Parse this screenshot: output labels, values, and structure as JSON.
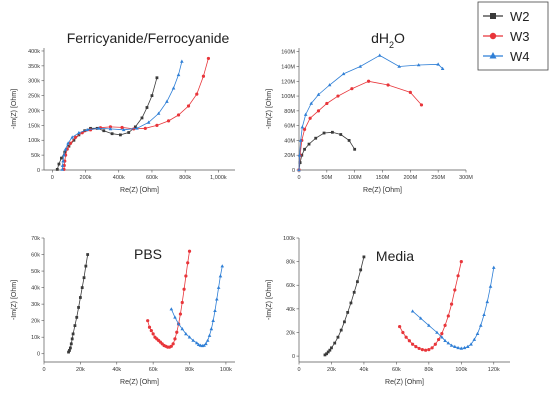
{
  "legend": {
    "position": "top-right",
    "entries": [
      {
        "name": "W2",
        "color": "#3a3a3a",
        "marker": "square"
      },
      {
        "name": "W3",
        "color": "#e8353a",
        "marker": "circle"
      },
      {
        "name": "W4",
        "color": "#2f7fd6",
        "marker": "triangle"
      }
    ]
  },
  "chart_data": [
    {
      "type": "scatter",
      "title": "Ferricyanide/Ferrocyanide",
      "title_sub": "",
      "xlabel": "Re(Z) [Ohm]",
      "ylabel": "-Im(Z) [Ohm]",
      "xlim": [
        -50000,
        1100000
      ],
      "ylim": [
        0,
        410000
      ],
      "xticks": [
        0,
        200000,
        400000,
        600000,
        800000,
        1000000
      ],
      "xtick_labels": [
        "0",
        "200k",
        "400k",
        "600k",
        "800k",
        "1,000k"
      ],
      "yticks": [
        0,
        50000,
        100000,
        150000,
        200000,
        250000,
        300000,
        350000,
        400000
      ],
      "ytick_labels": [
        "0",
        "50k",
        "100k",
        "150k",
        "200k",
        "250k",
        "300k",
        "350k",
        "400k"
      ],
      "series": [
        {
          "name": "W2",
          "x": [
            30000,
            40000,
            55000,
            75000,
            100000,
            130000,
            160000,
            195000,
            230000,
            270000,
            310000,
            360000,
            410000,
            460000,
            500000,
            540000,
            570000,
            600000,
            630000
          ],
          "y": [
            2000,
            20000,
            40000,
            60000,
            80000,
            100000,
            118000,
            132000,
            140000,
            140000,
            132000,
            122000,
            118000,
            126000,
            145000,
            175000,
            210000,
            250000,
            310000
          ]
        },
        {
          "name": "W3",
          "x": [
            70000,
            72000,
            75000,
            80000,
            90000,
            110000,
            140000,
            180000,
            230000,
            290000,
            350000,
            420000,
            490000,
            560000,
            630000,
            700000,
            760000,
            820000,
            870000,
            910000,
            940000
          ],
          "y": [
            2000,
            15000,
            30000,
            50000,
            70000,
            90000,
            110000,
            125000,
            135000,
            142000,
            145000,
            143000,
            138000,
            140000,
            150000,
            165000,
            185000,
            215000,
            255000,
            315000,
            375000
          ]
        },
        {
          "name": "W4",
          "x": [
            60000,
            62000,
            65000,
            70000,
            80000,
            95000,
            120000,
            160000,
            210000,
            280000,
            350000,
            430000,
            510000,
            580000,
            640000,
            690000,
            730000,
            760000,
            780000
          ],
          "y": [
            2000,
            15000,
            30000,
            50000,
            70000,
            90000,
            110000,
            125000,
            135000,
            140000,
            138000,
            135000,
            140000,
            160000,
            190000,
            230000,
            275000,
            320000,
            365000
          ]
        }
      ]
    },
    {
      "type": "scatter",
      "title": "dH",
      "title_sub": "2",
      "title_suffix": "O",
      "xlabel": "Re(Z) [Ohm]",
      "ylabel": "-Im(Z) [Ohm]",
      "xlim": [
        0,
        300000000
      ],
      "ylim": [
        0,
        165000000
      ],
      "xticks": [
        0,
        50000000,
        100000000,
        150000000,
        200000000,
        250000000,
        300000000
      ],
      "xtick_labels": [
        "0",
        "50M",
        "100M",
        "150M",
        "200M",
        "250M",
        "300M"
      ],
      "yticks": [
        0,
        20000000,
        40000000,
        60000000,
        80000000,
        100000000,
        120000000,
        140000000,
        160000000
      ],
      "ytick_labels": [
        "0",
        "20M",
        "40M",
        "60M",
        "80M",
        "100M",
        "120M",
        "140M",
        "160M"
      ],
      "series": [
        {
          "name": "W2",
          "x": [
            0,
            2000000,
            5000000,
            10000000,
            18000000,
            30000000,
            45000000,
            60000000,
            75000000,
            90000000,
            100000000
          ],
          "y": [
            0,
            10000000,
            20000000,
            28000000,
            35000000,
            43000000,
            50000000,
            51000000,
            48000000,
            40000000,
            28000000
          ]
        },
        {
          "name": "W3",
          "x": [
            0,
            2000000,
            5000000,
            10000000,
            20000000,
            35000000,
            50000000,
            70000000,
            95000000,
            125000000,
            160000000,
            200000000,
            220000000
          ],
          "y": [
            0,
            20000000,
            40000000,
            55000000,
            70000000,
            80000000,
            90000000,
            100000000,
            110000000,
            120000000,
            115000000,
            105000000,
            88000000
          ]
        },
        {
          "name": "W4",
          "x": [
            0,
            1000000,
            3000000,
            6000000,
            12000000,
            22000000,
            35000000,
            55000000,
            80000000,
            110000000,
            145000000,
            180000000,
            215000000,
            250000000,
            258000000
          ],
          "y": [
            0,
            20000000,
            40000000,
            58000000,
            75000000,
            90000000,
            102000000,
            115000000,
            130000000,
            140000000,
            155000000,
            140000000,
            142000000,
            143000000,
            137000000
          ]
        }
      ]
    },
    {
      "type": "scatter",
      "title": "PBS",
      "title_sub": "",
      "xlabel": "Re(Z) [Ohm]",
      "ylabel": "-Im(Z) [Ohm]",
      "xlim": [
        0,
        105000
      ],
      "ylim": [
        -5000,
        70000
      ],
      "xticks": [
        0,
        20000,
        40000,
        60000,
        80000,
        100000
      ],
      "xtick_labels": [
        "0",
        "20k",
        "40k",
        "60k",
        "80k",
        "100k"
      ],
      "yticks": [
        0,
        10000,
        20000,
        30000,
        40000,
        50000,
        60000,
        70000
      ],
      "ytick_labels": [
        "0",
        "10k",
        "20k",
        "30k",
        "40k",
        "50k",
        "60k",
        "70k"
      ],
      "series": [
        {
          "name": "W2",
          "x": [
            13500,
            14000,
            14500,
            15000,
            15500,
            16000,
            17000,
            18000,
            19000,
            20000,
            21000,
            22000,
            23000,
            24000
          ],
          "y": [
            1000,
            2000,
            3500,
            6000,
            9000,
            12000,
            17000,
            22000,
            28000,
            34000,
            40000,
            46000,
            53000,
            60000
          ]
        },
        {
          "name": "W3",
          "x": [
            57000,
            58000,
            59000,
            60000,
            61000,
            62000,
            63000,
            64000,
            65000,
            66000,
            67000,
            68000,
            69000,
            70000,
            71000,
            72000,
            73000,
            74000,
            75000,
            76000,
            77000,
            78000,
            79000,
            80000
          ],
          "y": [
            20000,
            16000,
            14000,
            12000,
            10000,
            9000,
            8000,
            7000,
            6000,
            5000,
            4500,
            4000,
            4000,
            4500,
            6000,
            9000,
            13000,
            18000,
            24000,
            31000,
            39000,
            47000,
            55000,
            62000
          ]
        },
        {
          "name": "W4",
          "x": [
            70000,
            72000,
            74000,
            76000,
            78000,
            80000,
            82000,
            84000,
            85000,
            86000,
            87000,
            88000,
            89000,
            90000,
            91000,
            92000,
            93000,
            94000,
            95000,
            96000,
            97000,
            98000
          ],
          "y": [
            27000,
            22000,
            18000,
            15000,
            12000,
            10000,
            8000,
            6500,
            5500,
            5000,
            4800,
            5000,
            6000,
            8000,
            11000,
            15000,
            20000,
            26000,
            33000,
            40000,
            47000,
            53000
          ]
        }
      ]
    },
    {
      "type": "scatter",
      "title": "Media",
      "title_sub": "",
      "xlabel": "Re(Z) [Ohm]",
      "ylabel": "-Im(Z) [Ohm]",
      "xlim": [
        0,
        130000
      ],
      "ylim": [
        -5000,
        100000
      ],
      "xticks": [
        0,
        20000,
        40000,
        60000,
        80000,
        100000,
        120000
      ],
      "xtick_labels": [
        "0",
        "20k",
        "40k",
        "60k",
        "80k",
        "100k",
        "120k"
      ],
      "yticks": [
        0,
        20000,
        40000,
        60000,
        80000,
        100000
      ],
      "ytick_labels": [
        "0",
        "20k",
        "40k",
        "60k",
        "80k",
        "100k"
      ],
      "series": [
        {
          "name": "W2",
          "x": [
            16000,
            17000,
            18000,
            19000,
            20000,
            22000,
            24000,
            26000,
            28000,
            30000,
            32000,
            34000,
            36000,
            38000,
            40000
          ],
          "y": [
            1000,
            2000,
            3500,
            5000,
            7000,
            11000,
            16000,
            22000,
            29000,
            37000,
            45000,
            54000,
            63000,
            73000,
            84000
          ]
        },
        {
          "name": "W3",
          "x": [
            62000,
            64000,
            66000,
            68000,
            70000,
            72000,
            74000,
            76000,
            78000,
            80000,
            82000,
            84000,
            86000,
            88000,
            90000,
            92000,
            94000,
            96000,
            98000,
            100000
          ],
          "y": [
            25000,
            20000,
            16000,
            13000,
            10000,
            8000,
            6500,
            5500,
            5000,
            5500,
            7000,
            10000,
            14000,
            19000,
            26000,
            34000,
            44000,
            56000,
            68000,
            80000
          ]
        },
        {
          "name": "W4",
          "x": [
            70000,
            75000,
            80000,
            85000,
            88000,
            90000,
            92000,
            94000,
            96000,
            98000,
            100000,
            102000,
            104000,
            106000,
            108000,
            110000,
            112000,
            114000,
            116000,
            118000,
            120000
          ],
          "y": [
            38000,
            32000,
            26000,
            20000,
            16000,
            13000,
            11000,
            9000,
            8000,
            7000,
            6500,
            7000,
            8000,
            10000,
            14000,
            19000,
            26000,
            35000,
            46000,
            59000,
            75000
          ]
        }
      ]
    }
  ]
}
